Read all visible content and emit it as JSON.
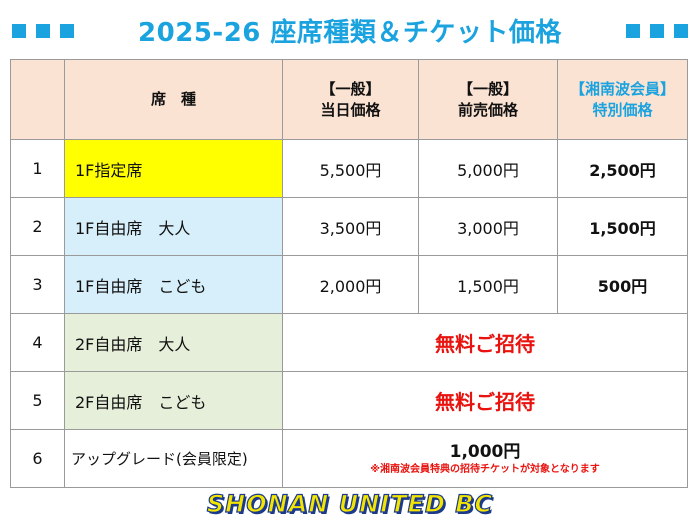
{
  "title": "2025-26  座席種類＆チケット価格",
  "colors": {
    "accent": "#1aa3df",
    "free_red": "#e8130f",
    "header_bg": "#fbe3d3",
    "yellow": "#ffff00",
    "light_blue": "#d7effa",
    "light_green": "#e6efda"
  },
  "table": {
    "headers": {
      "num": "",
      "seat": "席　種",
      "same_day_line1": "【一般】",
      "same_day_line2": "当日価格",
      "advance_line1": "【一般】",
      "advance_line2": "前売価格",
      "member_line1": "【湘南波会員】",
      "member_line2": "特別価格"
    },
    "rows": [
      {
        "num": "1",
        "seat": "1F指定席",
        "same_day": "5,500円",
        "advance": "5,000円",
        "member": "2,500円"
      },
      {
        "num": "2",
        "seat": "1F自由席　大人",
        "same_day": "3,500円",
        "advance": "3,000円",
        "member": "1,500円"
      },
      {
        "num": "3",
        "seat": "1F自由席　こども",
        "same_day": "2,000円",
        "advance": "1,500円",
        "member": "500円"
      },
      {
        "num": "4",
        "seat": "2F自由席　大人",
        "merged": "無料ご招待"
      },
      {
        "num": "5",
        "seat": "2F自由席　こども",
        "merged": "無料ご招待"
      },
      {
        "num": "6",
        "seat": "アップグレード(会員限定)",
        "merged": "1,000円",
        "note": "※湘南波会員特典の招待チケットが対象となります"
      }
    ]
  },
  "logo": {
    "text": "SHONAN UNITED BC"
  }
}
